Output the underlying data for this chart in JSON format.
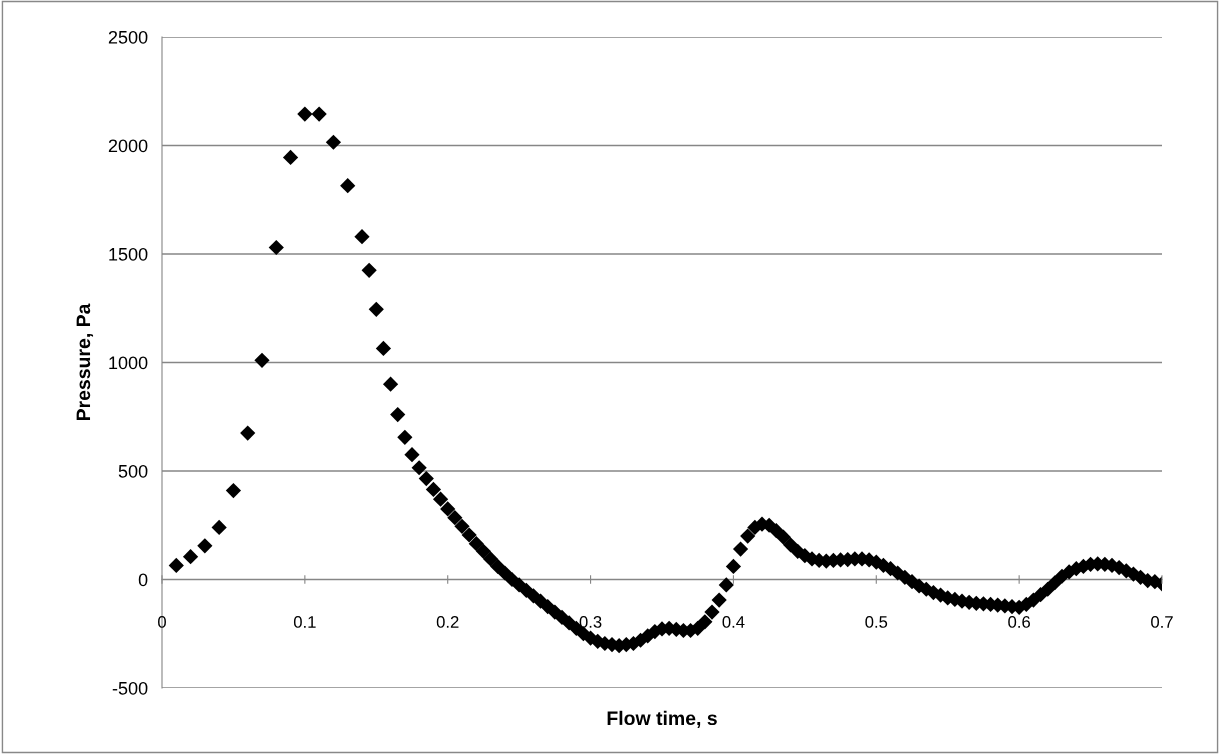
{
  "chart_data": {
    "type": "scatter",
    "xlabel": "Flow time, s",
    "ylabel": "Pressure, Pa",
    "xlim": [
      0,
      0.7
    ],
    "xticks": [
      {
        "value": 0,
        "label": "0"
      },
      0.1,
      0.2,
      0.3,
      0.4,
      0.5,
      0.6,
      0.7
    ],
    "ylim": [
      -500,
      2500
    ],
    "yticks": [
      -500,
      0,
      500,
      1000,
      1500,
      2000,
      2500
    ],
    "grid": "y",
    "marker": "diamond",
    "series": [
      {
        "color": "#000000",
        "x": [
          0.01,
          0.02,
          0.03,
          0.04,
          0.05,
          0.06,
          0.07,
          0.08,
          0.09,
          0.1,
          0.11,
          0.12,
          0.13,
          0.14,
          0.145,
          0.15,
          0.155,
          0.16,
          0.165,
          0.17,
          0.175,
          0.18,
          0.185,
          0.19,
          0.195,
          0.2,
          0.205,
          0.21,
          0.215,
          0.22,
          0.225,
          0.23,
          0.235,
          0.24,
          0.245,
          0.25,
          0.255,
          0.26,
          0.265,
          0.27,
          0.275,
          0.28,
          0.285,
          0.29,
          0.295,
          0.3,
          0.305,
          0.31,
          0.315,
          0.32,
          0.325,
          0.33,
          0.335,
          0.34,
          0.345,
          0.35,
          0.355,
          0.36,
          0.365,
          0.37,
          0.375,
          0.38,
          0.385,
          0.39,
          0.395,
          0.4,
          0.405,
          0.41,
          0.415,
          0.42,
          0.425,
          0.43,
          0.435,
          0.44,
          0.445,
          0.45,
          0.455,
          0.46,
          0.465,
          0.47,
          0.475,
          0.48,
          0.485,
          0.49,
          0.495,
          0.5,
          0.505,
          0.51,
          0.515,
          0.52,
          0.525,
          0.53,
          0.535,
          0.54,
          0.545,
          0.55,
          0.555,
          0.56,
          0.565,
          0.57,
          0.575,
          0.58,
          0.585,
          0.59,
          0.595,
          0.6,
          0.605,
          0.61,
          0.615,
          0.62,
          0.625,
          0.63,
          0.635,
          0.64,
          0.645,
          0.65,
          0.655,
          0.66,
          0.665,
          0.67,
          0.675,
          0.68,
          0.685,
          0.69,
          0.695,
          0.7
        ],
        "values": [
          65,
          105,
          155,
          240,
          410,
          675,
          1010,
          1530,
          1945,
          2145,
          2145,
          2015,
          1815,
          1580,
          1425,
          1245,
          1065,
          900,
          760,
          655,
          575,
          515,
          465,
          415,
          370,
          325,
          285,
          245,
          205,
          165,
          130,
          95,
          60,
          30,
          0,
          -25,
          -50,
          -75,
          -100,
          -125,
          -150,
          -175,
          -200,
          -225,
          -250,
          -270,
          -285,
          -295,
          -300,
          -305,
          -300,
          -295,
          -280,
          -260,
          -240,
          -228,
          -225,
          -230,
          -235,
          -235,
          -225,
          -195,
          -150,
          -95,
          -25,
          60,
          140,
          200,
          240,
          255,
          250,
          225,
          195,
          160,
          130,
          110,
          95,
          88,
          85,
          88,
          90,
          92,
          95,
          95,
          90,
          80,
          65,
          50,
          30,
          10,
          -10,
          -30,
          -45,
          -60,
          -72,
          -85,
          -92,
          -100,
          -105,
          -110,
          -112,
          -115,
          -118,
          -122,
          -125,
          -128,
          -115,
          -95,
          -70,
          -45,
          -15,
          15,
          35,
          50,
          60,
          70,
          72,
          70,
          65,
          55,
          40,
          25,
          10,
          -5,
          -10,
          -20
        ]
      }
    ]
  }
}
